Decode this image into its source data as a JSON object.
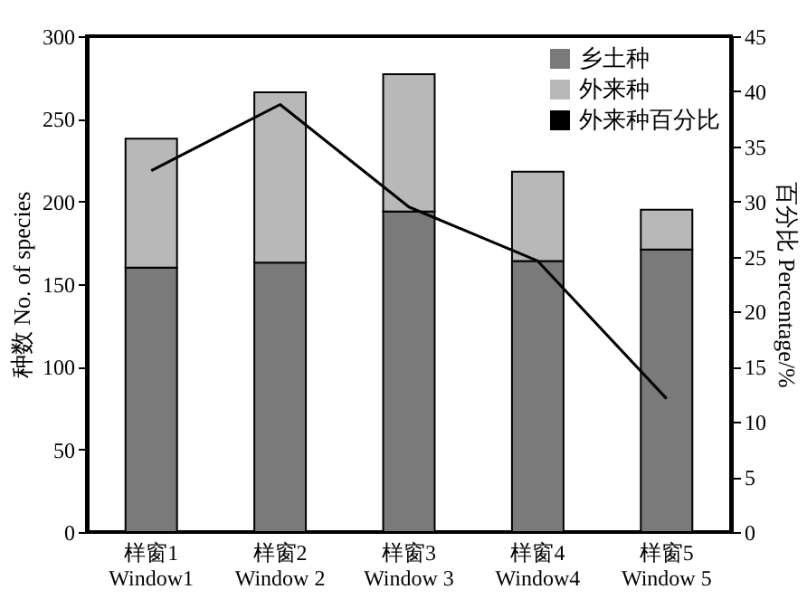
{
  "chart_data": {
    "type": "bar",
    "stacked": true,
    "categories": [
      "样窗1\nWindow1",
      "样窗2\nWindow 2",
      "样窗3\nWindow 3",
      "样窗4\nWindow4",
      "样窗5\nWindow 5"
    ],
    "ylabel": "种数 No. of species",
    "y2label": "百分比 Percentage/%",
    "ylim": [
      0,
      300
    ],
    "yticks": [
      0,
      50,
      100,
      150,
      200,
      250,
      300
    ],
    "y2lim": [
      0,
      45
    ],
    "y2ticks": [
      0,
      5,
      10,
      15,
      20,
      25,
      30,
      35,
      40,
      45
    ],
    "legend": "top right",
    "grid": false,
    "series": [
      {
        "name": "乡土种",
        "color": "#7a7a7a",
        "values": [
          160,
          163,
          194,
          164,
          171
        ]
      },
      {
        "name": "外来种",
        "color": "#b8b8b8",
        "values": [
          78,
          103,
          83,
          54,
          24
        ]
      },
      {
        "name": "外来种百分比",
        "type": "line",
        "axis": "y2",
        "color": "#000000",
        "values": [
          32.8,
          38.8,
          29.5,
          24.6,
          12.1
        ]
      }
    ]
  }
}
